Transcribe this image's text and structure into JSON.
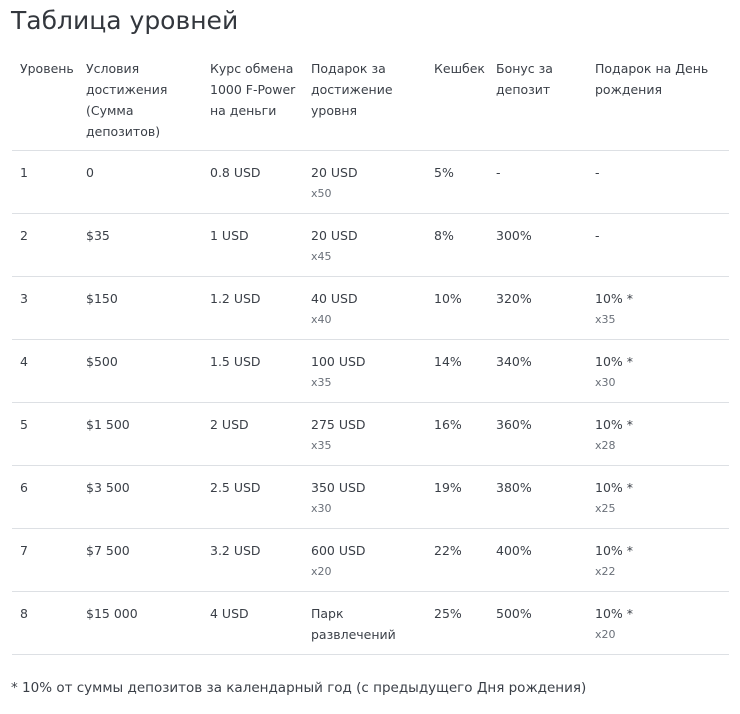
{
  "title": "Таблица уровней",
  "columns": [
    "Уровень",
    "Условия достижения (Сумма депозитов)",
    "Курс обмена 1000 F-Power на деньги",
    "Подарок за достижение уровня",
    "Кешбек",
    "Бонус за депозит",
    "Подарок на День рождения"
  ],
  "rows": [
    {
      "level": "1",
      "condition": "0",
      "rate": "0.8 USD",
      "gift": "20 USD",
      "gift_wager": "x50",
      "cashback": "5%",
      "deposit_bonus": "-",
      "birthday": "-",
      "birthday_wager": ""
    },
    {
      "level": "2",
      "condition": "$35",
      "rate": "1 USD",
      "gift": "20 USD",
      "gift_wager": "x45",
      "cashback": "8%",
      "deposit_bonus": "300%",
      "birthday": "-",
      "birthday_wager": ""
    },
    {
      "level": "3",
      "condition": "$150",
      "rate": "1.2 USD",
      "gift": "40 USD",
      "gift_wager": "x40",
      "cashback": "10%",
      "deposit_bonus": "320%",
      "birthday": "10% *",
      "birthday_wager": "x35"
    },
    {
      "level": "4",
      "condition": "$500",
      "rate": "1.5 USD",
      "gift": "100 USD",
      "gift_wager": "x35",
      "cashback": "14%",
      "deposit_bonus": "340%",
      "birthday": "10% *",
      "birthday_wager": "x30"
    },
    {
      "level": "5",
      "condition": "$1 500",
      "rate": "2 USD",
      "gift": "275 USD",
      "gift_wager": "x35",
      "cashback": "16%",
      "deposit_bonus": "360%",
      "birthday": "10% *",
      "birthday_wager": "x28"
    },
    {
      "level": "6",
      "condition": "$3 500",
      "rate": "2.5 USD",
      "gift": "350 USD",
      "gift_wager": "x30",
      "cashback": "19%",
      "deposit_bonus": "380%",
      "birthday": "10% *",
      "birthday_wager": "x25"
    },
    {
      "level": "7",
      "condition": "$7 500",
      "rate": "3.2 USD",
      "gift": "600 USD",
      "gift_wager": "x20",
      "cashback": "22%",
      "deposit_bonus": "400%",
      "birthday": "10% *",
      "birthday_wager": "x22"
    },
    {
      "level": "8",
      "condition": "$15 000",
      "rate": "4 USD",
      "gift": "Парк развлечений",
      "gift_wager": "",
      "cashback": "25%",
      "deposit_bonus": "500%",
      "birthday": "10% *",
      "birthday_wager": "x20"
    }
  ],
  "footnote": "* 10% от суммы депозитов за календарный год (с предыдущего Дня рождения)"
}
